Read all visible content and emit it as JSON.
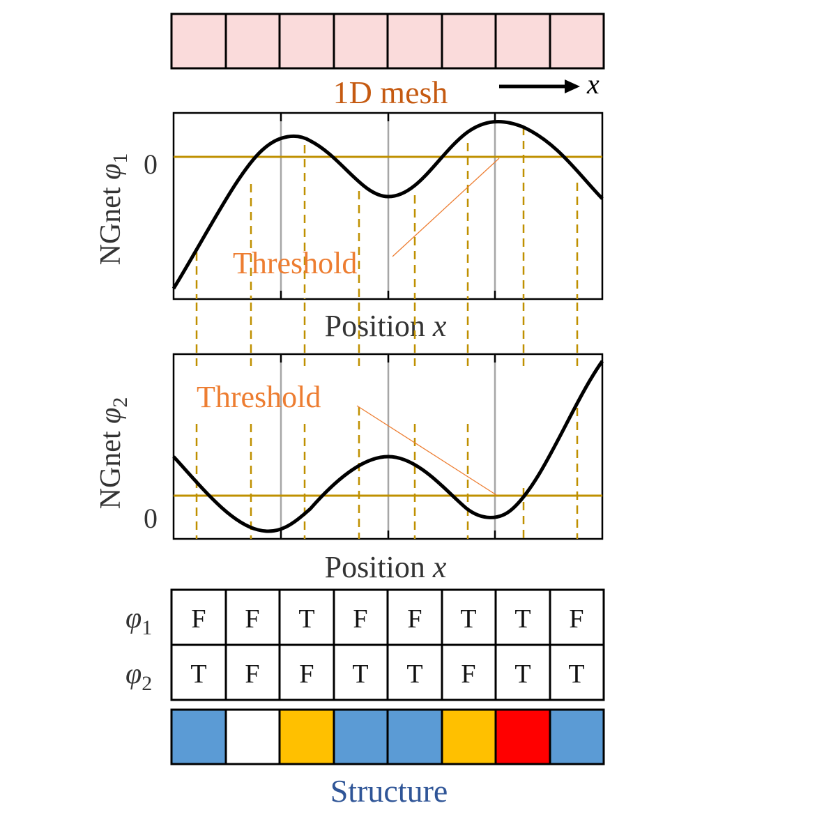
{
  "mesh": {
    "label": "1D mesh",
    "axis_symbol": "x",
    "fill": "#fadbdb",
    "cells": 8
  },
  "plot1": {
    "ylabel_prefix": "NGnet ",
    "ylabel_symbol": "φ",
    "ylabel_sub": "1",
    "zero_label": "0",
    "xlabel_prefix": "Position ",
    "xlabel_symbol": "x",
    "threshold_label": "Threshold"
  },
  "plot2": {
    "ylabel_prefix": "NGnet ",
    "ylabel_symbol": "φ",
    "ylabel_sub": "2",
    "zero_label": "0",
    "xlabel_prefix": "Position ",
    "xlabel_symbol": "x",
    "threshold_label": "Threshold"
  },
  "table": {
    "row1": {
      "symbol": "φ",
      "sub": "1",
      "values": [
        "F",
        "F",
        "T",
        "F",
        "F",
        "T",
        "T",
        "F"
      ]
    },
    "row2": {
      "symbol": "φ",
      "sub": "2",
      "values": [
        "T",
        "F",
        "F",
        "T",
        "T",
        "F",
        "T",
        "T"
      ]
    }
  },
  "structure": {
    "label": "Structure",
    "colors": [
      "#5b9bd5",
      "#ffffff",
      "#ffc000",
      "#5b9bd5",
      "#5b9bd5",
      "#ffc000",
      "#ff0000",
      "#5b9bd5"
    ]
  },
  "colors": {
    "threshold_line": "#bf9000",
    "threshold_text": "#ed7d31",
    "mesh_label": "#c55a11",
    "structure_label": "#2f5597",
    "gray_line": "#a6a6a6"
  }
}
